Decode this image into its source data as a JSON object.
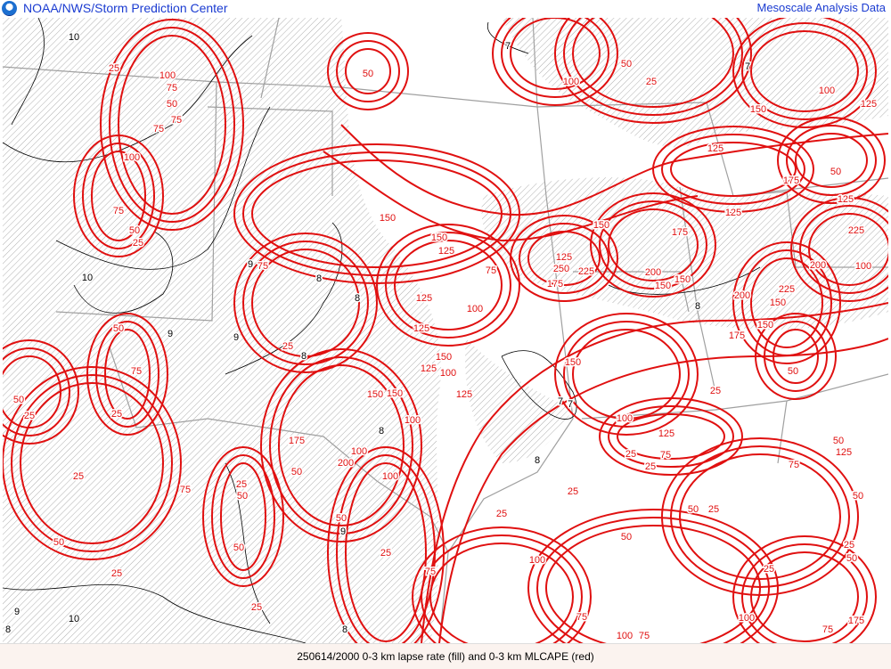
{
  "header": {
    "left_title": "NOAA/NWS/Storm Prediction Center",
    "right_title": "Mesoscale Analysis Data",
    "logo": "noaa-logo"
  },
  "footer": {
    "caption": "250614/2000 0-3 km lapse rate (fill) and 0-3 km MLCAPE (red)"
  },
  "colors": {
    "mlcape_contour": "#e01010",
    "lapse_rate_contour": "#000000",
    "borders": "#a0a0a0",
    "title": "#1a3bd1",
    "hatch": "#909090"
  },
  "mlcape_labels": [
    "25",
    "100",
    "75",
    "50",
    "75",
    "75",
    "100",
    "75",
    "50",
    "25",
    "75",
    "25",
    "50",
    "75",
    "25",
    "50",
    "25",
    "25",
    "75",
    "25",
    "50",
    "50",
    "25",
    "50",
    "150",
    "125",
    "150",
    "150",
    "125",
    "75",
    "100",
    "125",
    "100",
    "150",
    "125",
    "125",
    "100",
    "150",
    "100",
    "200",
    "175",
    "50",
    "100",
    "50",
    "25",
    "25",
    "25",
    "75",
    "50",
    "100",
    "50",
    "25",
    "100",
    "150",
    "150",
    "125",
    "250",
    "225",
    "175",
    "200",
    "150",
    "150",
    "175",
    "125",
    "225",
    "200",
    "150",
    "175",
    "150",
    "225",
    "200",
    "125",
    "175",
    "50",
    "50",
    "25",
    "150",
    "100",
    "125",
    "75",
    "25",
    "25",
    "50",
    "25",
    "50",
    "25",
    "50",
    "100",
    "75",
    "100",
    "125",
    "125",
    "50",
    "75",
    "100",
    "125",
    "75",
    "175",
    "25",
    "100",
    "75",
    "50",
    "25"
  ],
  "lapse_labels": [
    "10",
    "10",
    "9",
    "8",
    "9",
    "8",
    "8",
    "9",
    "8",
    "7",
    "7",
    "8",
    "9",
    "8",
    "8",
    "10",
    "9",
    "8",
    "7",
    "7"
  ]
}
